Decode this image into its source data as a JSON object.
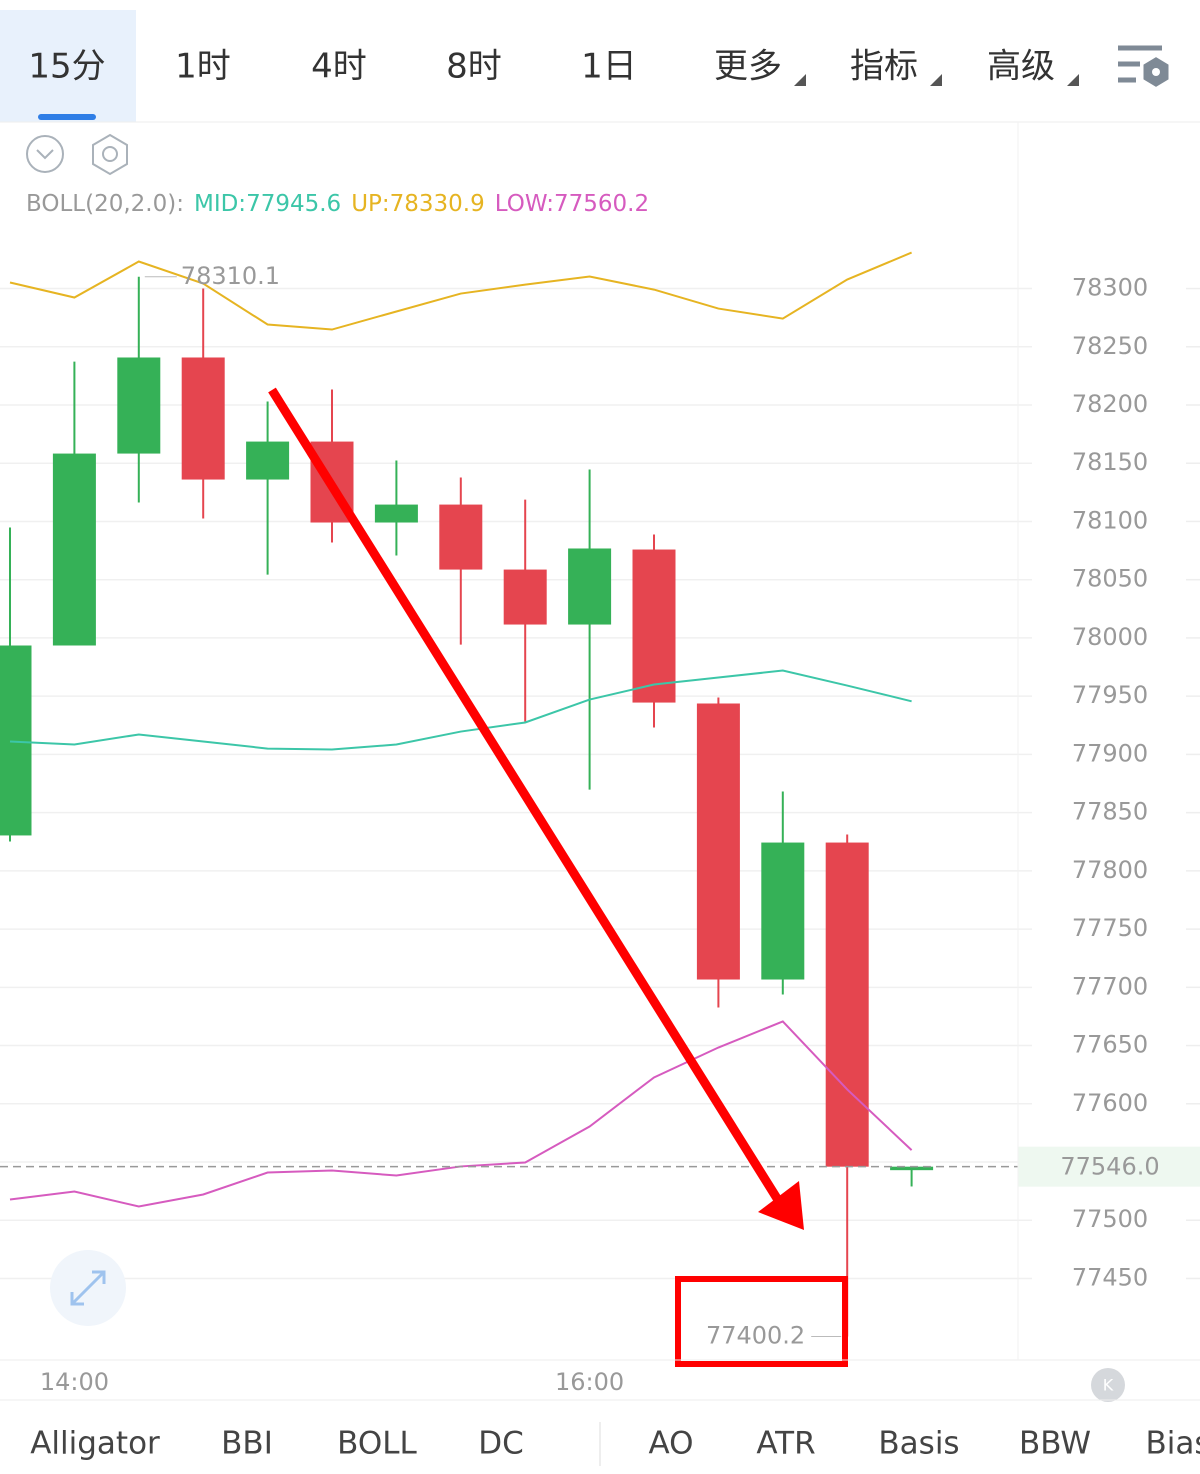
{
  "tabs": [
    "15分",
    "1时",
    "4时",
    "8时",
    "1日",
    "更多",
    "指标",
    "高级"
  ],
  "indicator_label": "BOLL(20,2.0):",
  "indicators": [
    "Alligator",
    "BBI",
    "BOLL",
    "DC",
    "AO",
    "ATR",
    "Basis",
    "BBW",
    "Bias"
  ],
  "chart_data": {
    "type": "candlestick",
    "categories": [
      null,
      "14:00",
      null,
      null,
      null,
      null,
      null,
      null,
      null,
      "16:00",
      null,
      null,
      null,
      null,
      null
    ],
    "open": [
      77830.4,
      77993.5,
      78158.3,
      78240.8,
      78136.0,
      78168.6,
      78099.1,
      78114.5,
      78058.7,
      78011.5,
      78075.9,
      77943.7,
      77706.7,
      77824.3,
      77543.0
    ],
    "high": [
      78094.8,
      78237.3,
      78310.1,
      78300.0,
      78203.0,
      78213.3,
      78152.3,
      78137.7,
      78118.8,
      78144.6,
      78088.8,
      77948.8,
      77868.1,
      77831.2,
      77546.5
    ],
    "low": [
      77825.2,
      77993.5,
      78116.3,
      78102.5,
      78054.4,
      78081.9,
      78070.8,
      77994.3,
      77928.2,
      77869.8,
      77923.1,
      77682.7,
      77693.8,
      77400.2,
      77529.0
    ],
    "close": [
      77993.5,
      78158.3,
      78240.8,
      78136.0,
      78168.6,
      78099.1,
      78114.5,
      78058.7,
      78011.5,
      78076.8,
      77944.5,
      77706.7,
      77824.3,
      77546.0,
      77546.0
    ],
    "up_color": "#35b157",
    "down_color": "#e5454f",
    "series": [
      {
        "name": "MID:",
        "color": "#3cc6a8",
        "values": [
          77911.1,
          77908.5,
          77917.1,
          77911.1,
          77905.0,
          77904.2,
          77908.5,
          77919.6,
          77927.4,
          77947.1,
          77960.0,
          77966.0,
          77972.0,
          77959.1,
          77945.6
        ]
      },
      {
        "name": "UP:",
        "color": "#e6b422",
        "values": [
          78305.2,
          78292.3,
          78323.2,
          78304.3,
          78269.1,
          78264.8,
          78280.3,
          78295.7,
          78303.4,
          78310.3,
          78299.1,
          78282.8,
          78274.2,
          78307.7,
          78330.9
        ]
      },
      {
        "name": "LOW:",
        "color": "#d65bbf",
        "values": [
          77517.8,
          77524.7,
          77511.8,
          77522.1,
          77541.0,
          77542.7,
          77538.4,
          77546.2,
          77549.6,
          77580.5,
          77622.6,
          77648.3,
          77670.7,
          77612.3,
          77560.2
        ]
      }
    ],
    "ylim": [
      77380,
      78443
    ],
    "yticks": [
      77450,
      77500,
      77550,
      77600,
      77650,
      77700,
      77750,
      77800,
      77850,
      77900,
      77950,
      78000,
      78050,
      78100,
      78150,
      78200,
      78250,
      78300
    ],
    "last_price": {
      "value": 77546.0,
      "label": "77546.0"
    },
    "grid": true
  }
}
